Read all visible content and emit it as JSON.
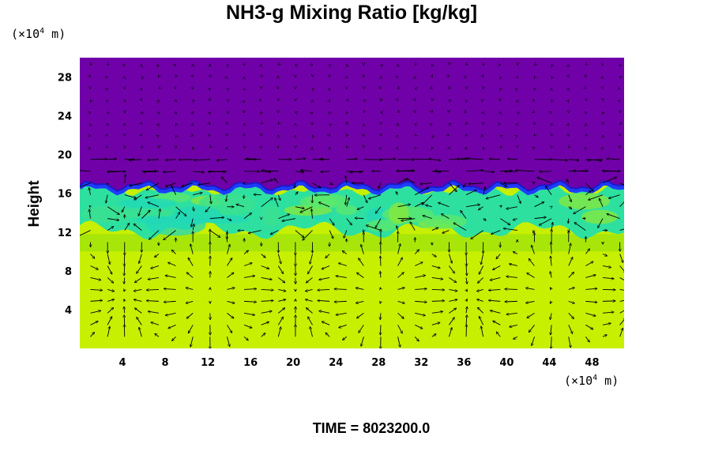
{
  "chart_data": {
    "type": "heatmap",
    "title": "NH3-g Mixing Ratio [kg/kg]",
    "ylabel": "Height",
    "xlabel": "",
    "x_unit": {
      "prefix": "(×10",
      "exp": "4",
      "suffix": " m)"
    },
    "y_unit": {
      "prefix": "(×10",
      "exp": "4",
      "suffix": " m)"
    },
    "x_ticks": [
      4,
      8,
      12,
      16,
      20,
      24,
      28,
      32,
      36,
      40,
      44,
      48
    ],
    "y_ticks": [
      4,
      8,
      12,
      16,
      20,
      24,
      28
    ],
    "xlim": [
      0,
      51
    ],
    "ylim": [
      0,
      30
    ],
    "grid": false,
    "field_layers": [
      {
        "band": "lower-troposphere",
        "y_range": [
          0,
          10
        ],
        "color": "#c6f000"
      },
      {
        "band": "transition",
        "y_range": [
          10,
          12
        ],
        "color": "#9fe40c"
      },
      {
        "band": "cloud-layer",
        "y_range": [
          12,
          16.5
        ],
        "color": "#2ee0a0"
      },
      {
        "band": "upper",
        "y_range": [
          16.5,
          30
        ],
        "color": "#7000a8"
      }
    ],
    "vectors": "wind velocity arrows over the field",
    "time_label": "TIME = ",
    "time_value": "8023200.0"
  },
  "colors": {
    "top_purple": "#7000a8",
    "bottom_yellow": "#c6f000",
    "mid_green": "#2ee0a0",
    "edge_blue": "#1e3cff",
    "dark_blue": "#1a1ac8"
  }
}
